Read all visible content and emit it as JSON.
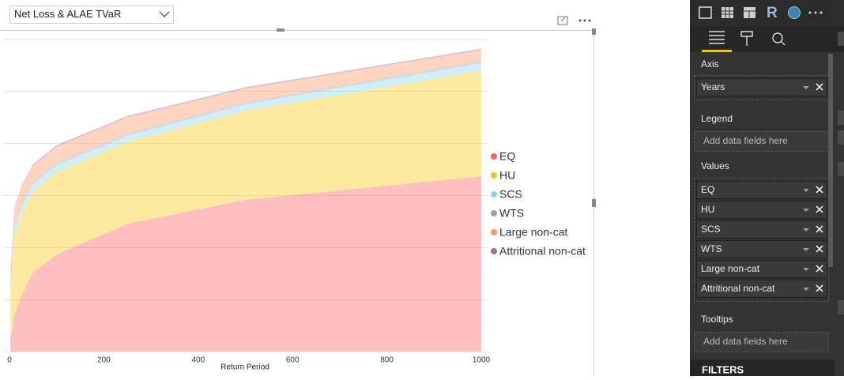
{
  "dropdown": {
    "label": "Net Loss & ALAE TVaR"
  },
  "chart_data": {
    "type": "stacked_area",
    "x_label": "Return Period",
    "x": [
      2,
      10,
      25,
      50,
      100,
      250,
      500,
      1000
    ],
    "series": [
      {
        "name": "EQ",
        "color": "#fd625e",
        "values": [
          0.23,
          0.68,
          1.06,
          1.52,
          1.86,
          2.45,
          2.91,
          3.36
        ]
      },
      {
        "name": "HU",
        "color": "#f2c80f",
        "values": [
          0.83,
          1.52,
          1.59,
          1.54,
          1.58,
          1.57,
          1.71,
          2.02
        ]
      },
      {
        "name": "SCS",
        "color": "#8ad4eb",
        "values": [
          0.12,
          0.15,
          0.15,
          0.15,
          0.14,
          0.12,
          0.12,
          0.15
        ]
      },
      {
        "name": "WTS",
        "color": "#a0a0a0",
        "values": [
          0.05,
          0.05,
          0.05,
          0.05,
          0.05,
          0.05,
          0.05,
          0.05
        ]
      },
      {
        "name": "Large non-cat",
        "color": "#fe9666",
        "values": [
          0.3,
          0.3,
          0.3,
          0.3,
          0.3,
          0.3,
          0.25,
          0.2
        ]
      },
      {
        "name": "Attritional non-cat",
        "color": "#a66999",
        "values": [
          0.03,
          0.03,
          0.03,
          0.03,
          0.03,
          0.03,
          0.03,
          0.03
        ]
      }
    ],
    "xlim": [
      0,
      1000
    ],
    "xticks": [
      0,
      200,
      400,
      600,
      800,
      1000
    ],
    "ylim": [
      0,
      6
    ],
    "yticks": [
      0,
      1,
      2,
      3,
      4,
      5,
      6
    ],
    "show_ytick_labels": false,
    "grid": true,
    "legend_position": "right"
  },
  "toolbar": {
    "r_icon": "R"
  },
  "fields_pane": {
    "axis": {
      "title": "Axis",
      "fields": [
        "Years"
      ]
    },
    "legend": {
      "title": "Legend",
      "placeholder": "Add data fields here"
    },
    "values": {
      "title": "Values",
      "fields": [
        "EQ",
        "HU",
        "SCS",
        "WTS",
        "Large non-cat",
        "Attritional non-cat"
      ]
    },
    "tooltips": {
      "title": "Tooltips",
      "placeholder": "Add data fields here"
    },
    "filters": "FILTERS"
  }
}
